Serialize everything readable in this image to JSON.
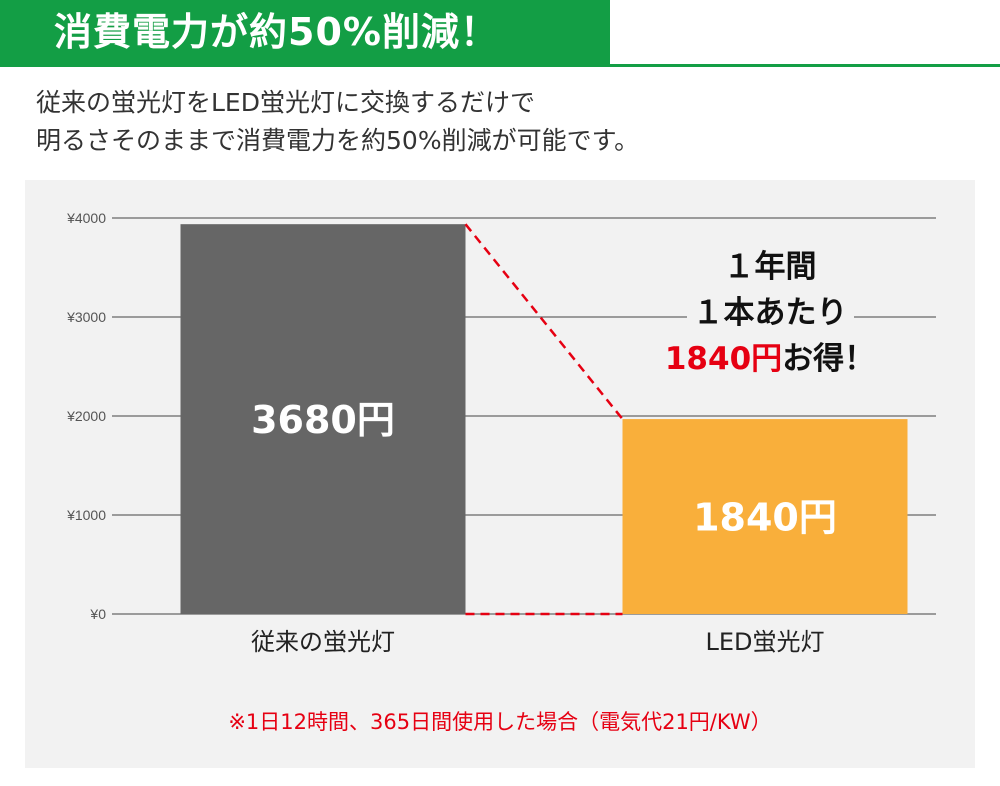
{
  "header": {
    "title": "消費電力が約50%削減！"
  },
  "description": {
    "line1": "従来の蛍光灯をLED蛍光灯に交換するだけで",
    "line2": "明るさそのままで消費電力を約50%削減が可能です。"
  },
  "chart_data": {
    "type": "bar",
    "categories": [
      "従来の蛍光灯",
      "LED蛍光灯"
    ],
    "values": [
      3680,
      1840
    ],
    "value_labels": [
      "3680円",
      "1840円"
    ],
    "ylim": [
      0,
      4000
    ],
    "yticks": [
      0,
      1000,
      2000,
      3000,
      4000
    ],
    "ytick_labels": [
      "¥0",
      "¥1000",
      "¥2000",
      "¥3000",
      "¥4000"
    ],
    "grid": true,
    "colors": [
      "#666666",
      "#f9af3b"
    ],
    "connector_color": "#e60012"
  },
  "callout": {
    "line1": "１年間",
    "line2": "１本あたり",
    "amount": "1840円",
    "suffix": "お得！"
  },
  "footnote": "※1日12時間、365日間使用した場合（電気代21円/KW）"
}
